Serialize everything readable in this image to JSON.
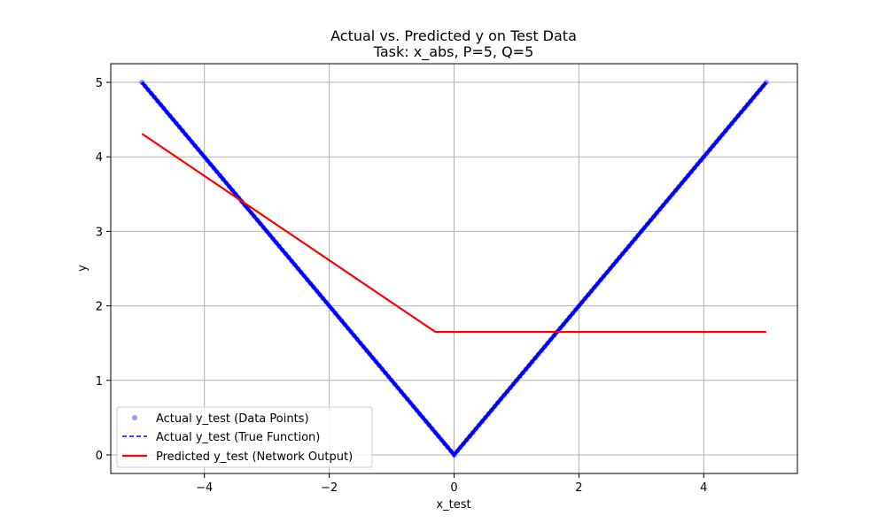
{
  "chart_data": {
    "type": "line",
    "title": "Actual vs. Predicted y on Test Data",
    "subtitle": "Task: x_abs, P=5, Q=5",
    "xlabel": "x_test",
    "ylabel": "y",
    "xlim": [
      -5.5,
      5.5
    ],
    "ylim": [
      -0.25,
      5.25
    ],
    "x_ticks": [
      -4,
      -2,
      0,
      2,
      4
    ],
    "y_ticks": [
      0,
      1,
      2,
      3,
      4,
      5
    ],
    "x_tick_labels": [
      "−4",
      "−2",
      "0",
      "2",
      "4"
    ],
    "y_tick_labels": [
      "0",
      "1",
      "2",
      "3",
      "4",
      "5"
    ],
    "grid": true,
    "legend_position": "lower-left",
    "series": [
      {
        "name": "Actual y_test (Data Points)",
        "kind": "scatter",
        "color": "#0000ff",
        "function": "abs",
        "x_range": [
          -5,
          5
        ],
        "num_points": 201
      },
      {
        "name": "Actual y_test (True Function)",
        "kind": "line-dashed",
        "color": "#0000ff",
        "x": [
          -5,
          0,
          5
        ],
        "y": [
          5,
          0,
          5
        ]
      },
      {
        "name": "Predicted y_test (Network Output)",
        "kind": "line",
        "color": "#ff0000",
        "x": [
          -5,
          -0.3,
          5
        ],
        "y": [
          4.31,
          1.65,
          1.65
        ]
      }
    ]
  }
}
